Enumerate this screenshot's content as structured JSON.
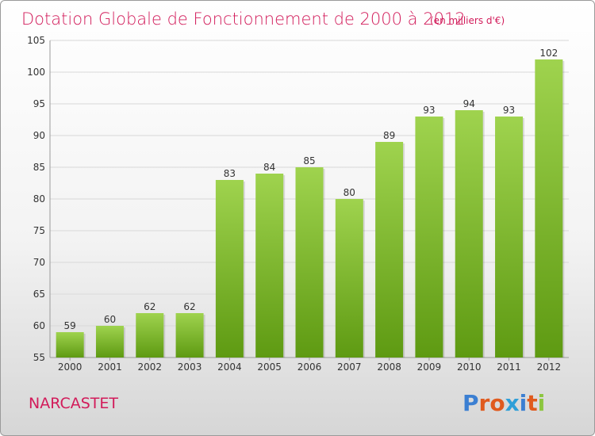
{
  "title": "Dotation Globale de Fonctionnement de 2000 à 2012",
  "subtitle": "(en milliers d'€)",
  "place_name": "NARCASTET",
  "brand": {
    "name": "Proxiti",
    "letter_colors": [
      "#3b7fd2",
      "#e05a1e",
      "#e05a1e",
      "#2f9fd8",
      "#3b7fd2",
      "#e05a1e",
      "#8cc63f"
    ]
  },
  "colors": {
    "title": "#d21b5a",
    "bar_top": "#9fd34e",
    "bar_bottom": "#5e9a12",
    "grid": "#d8d8d8",
    "axis_text": "#333333"
  },
  "chart_data": {
    "type": "bar",
    "title": "Dotation Globale de Fonctionnement de 2000 à 2012",
    "subtitle": "(en milliers d'€)",
    "categories": [
      "2000",
      "2001",
      "2002",
      "2003",
      "2004",
      "2005",
      "2006",
      "2007",
      "2008",
      "2009",
      "2010",
      "2011",
      "2012"
    ],
    "values": [
      59,
      60,
      62,
      62,
      83,
      84,
      85,
      80,
      89,
      93,
      94,
      93,
      102
    ],
    "ylim": [
      55,
      105
    ],
    "yticks": [
      55,
      60,
      65,
      70,
      75,
      80,
      85,
      90,
      95,
      100,
      105
    ],
    "grid": true
  }
}
